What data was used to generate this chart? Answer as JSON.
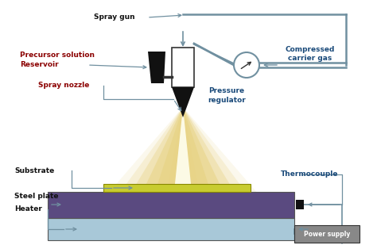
{
  "labels": {
    "spray_gun": "Spray gun",
    "precursor": "Precursor solution\nReservoir",
    "spray_nozzle": "Spray nozzle",
    "pressure": "Pressure\nregulator",
    "carrier_gas": "Compressed\ncarrier gas",
    "substrate": "Substrate",
    "steel_plate": "Steel plate",
    "heater": "Heater",
    "thermocouple": "Thermocouple",
    "power_supply": "Power supply"
  },
  "colors": {
    "label_color_red": "#8B0000",
    "label_color_blue": "#1a4a7a",
    "arrow_color": "#7090a0",
    "nozzle_body": "#111111",
    "reservoir_color": "#111111",
    "spray_cone_light": "#f8f0cc",
    "spray_cone_mid": "#e8d488",
    "substrate_layer": "#c8cc30",
    "steel_plate_color": "#5a4a80",
    "heater_color": "#a8c8d8",
    "thermocouple_dot": "#111111",
    "power_supply_box": "#888888",
    "power_supply_text": "#ffffff",
    "pipe_color": "#7090a0",
    "line_color": "#555555"
  }
}
